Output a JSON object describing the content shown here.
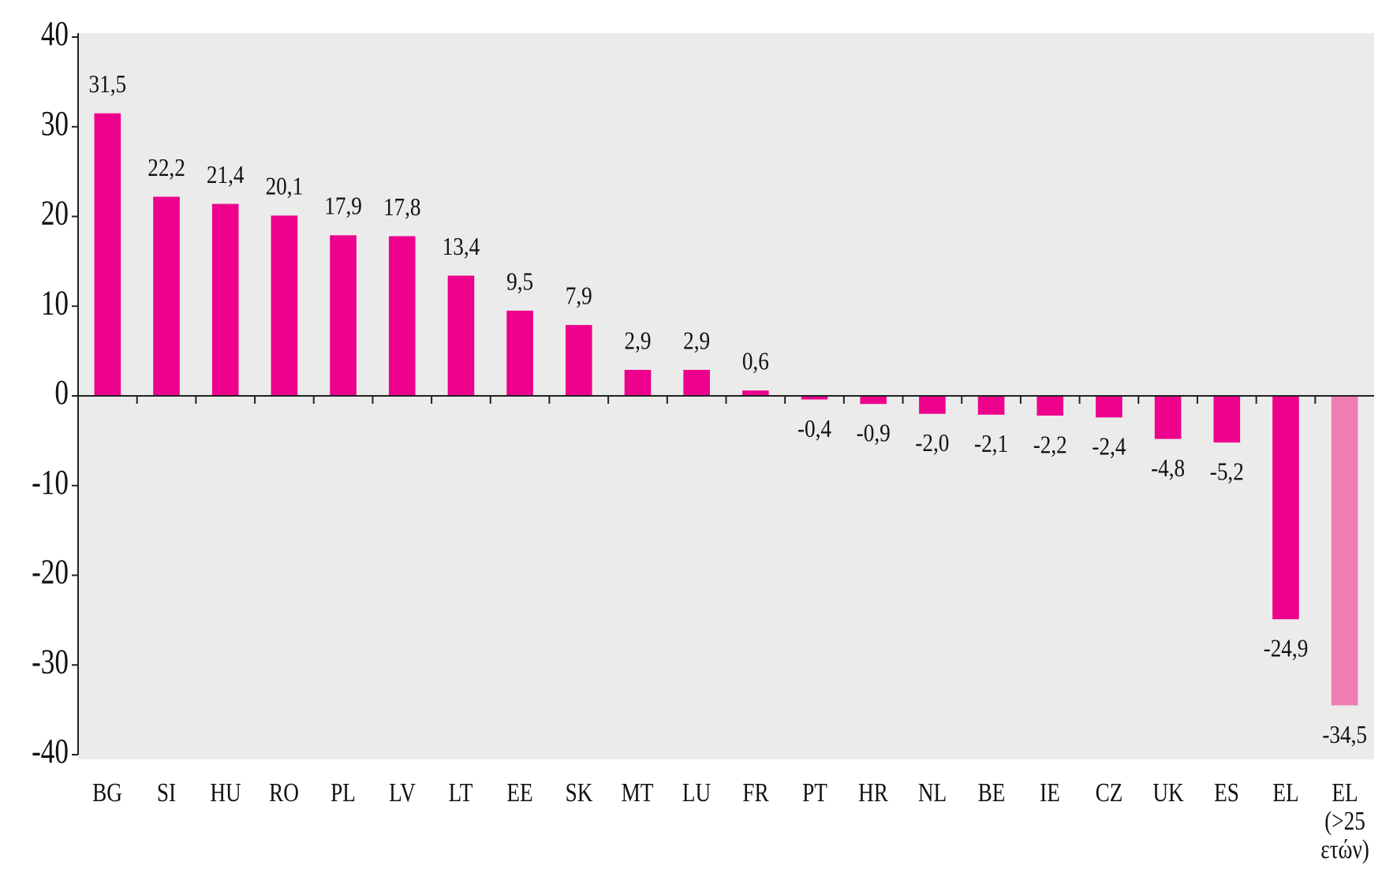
{
  "chart_data": {
    "type": "bar",
    "categories": [
      "BG",
      "SI",
      "HU",
      "RO",
      "PL",
      "LV",
      "LT",
      "EE",
      "SK",
      "MT",
      "LU",
      "FR",
      "PT",
      "HR",
      "NL",
      "BE",
      "IE",
      "CZ",
      "UK",
      "ES",
      "EL",
      "EL (>25 ετών)"
    ],
    "values": [
      31.5,
      22.2,
      21.4,
      20.1,
      17.9,
      17.8,
      13.4,
      9.5,
      7.9,
      2.9,
      2.9,
      0.6,
      -0.4,
      -0.9,
      -2.0,
      -2.1,
      -2.2,
      -2.4,
      -4.8,
      -5.2,
      -24.9,
      -34.5
    ],
    "value_labels": [
      "31,5",
      "22,2",
      "21,4",
      "20,1",
      "17,9",
      "17,8",
      "13,4",
      "9,5",
      "7,9",
      "2,9",
      "2,9",
      "0,6",
      "-0,4",
      "-0,9",
      "-2,0",
      "-2,1",
      "-2,2",
      "-2,4",
      "-4,8",
      "-5,2",
      "-24,9",
      "-34,5"
    ],
    "colors": [
      "#ec008c",
      "#ec008c",
      "#ec008c",
      "#ec008c",
      "#ec008c",
      "#ec008c",
      "#ec008c",
      "#ec008c",
      "#ec008c",
      "#ec008c",
      "#ec008c",
      "#ec008c",
      "#ec008c",
      "#ec008c",
      "#ec008c",
      "#ec008c",
      "#ec008c",
      "#ec008c",
      "#ec008c",
      "#ec008c",
      "#ec008c",
      "#f07cb4"
    ],
    "ylim": [
      -40,
      40
    ],
    "yticks": [
      -40,
      -30,
      -20,
      -10,
      0,
      10,
      20,
      30,
      40
    ]
  }
}
